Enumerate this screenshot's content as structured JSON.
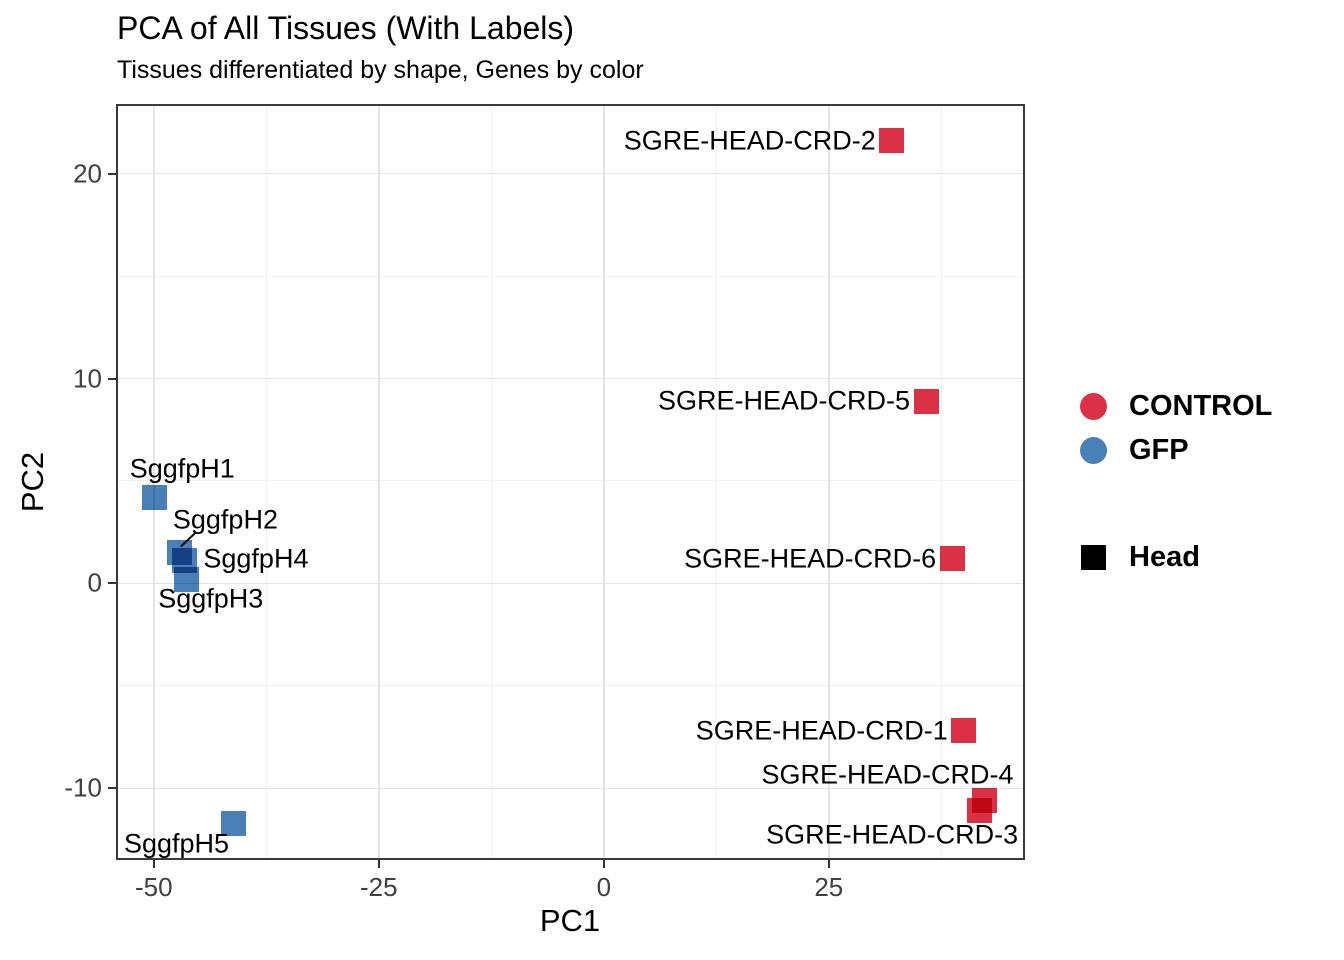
{
  "chart_data": {
    "type": "scatter",
    "title": "PCA of All Tissues (With Labels)",
    "subtitle": "Tissues differentiated by shape, Genes by color",
    "xlabel": "PC1",
    "ylabel": "PC2",
    "xlim": [
      -54.2,
      46.8
    ],
    "ylim": [
      -13.5,
      23.4
    ],
    "x_major_ticks": [
      -50,
      -25,
      0,
      25
    ],
    "y_major_ticks": [
      -10,
      0,
      10,
      20
    ],
    "x_minor_ticks": [
      -37.5,
      -12.5,
      12.5,
      37.5
    ],
    "y_minor_ticks": [
      -5,
      5,
      15
    ],
    "grid": true,
    "legend_position": "right",
    "marker_shape": "square",
    "series": [
      {
        "name": "CONTROL",
        "color": "#dc3044",
        "points": [
          {
            "label": "SGRE-HEAD-CRD-2",
            "x": 32.0,
            "y": 21.6,
            "label_dx": -16,
            "label_dy": 0,
            "label_align": "right"
          },
          {
            "label": "SGRE-HEAD-CRD-5",
            "x": 35.8,
            "y": 8.9,
            "label_dx": -16,
            "label_dy": 0,
            "label_align": "right"
          },
          {
            "label": "SGRE-HEAD-CRD-6",
            "x": 38.7,
            "y": 1.2,
            "label_dx": -16,
            "label_dy": 0,
            "label_align": "right"
          },
          {
            "label": "SGRE-HEAD-CRD-1",
            "x": 40.0,
            "y": -7.2,
            "label_dx": -16,
            "label_dy": 0,
            "label_align": "right"
          },
          {
            "label": "SGRE-HEAD-CRD-4",
            "x": 42.3,
            "y": -10.6,
            "label_dx": 29,
            "label_dy": -26,
            "label_align": "right"
          },
          {
            "label": "SGRE-HEAD-CRD-3",
            "x": 41.7,
            "y": -11.1,
            "label_dx": 39,
            "label_dy": 24,
            "label_align": "right"
          }
        ]
      },
      {
        "name": "GFP",
        "color": "#4a80b8",
        "points": [
          {
            "label": "SggfpH1",
            "x": -49.9,
            "y": 4.2,
            "label_dx": -25,
            "label_dy": -28,
            "label_align": "left"
          },
          {
            "label": "SggfpH2",
            "x": -47.1,
            "y": 1.5,
            "label_dx": -7,
            "label_dy": -33,
            "label_align": "left"
          },
          {
            "label": "SggfpH4",
            "x": -46.6,
            "y": 1.1,
            "label_dx": 19,
            "label_dy": -2,
            "label_align": "left"
          },
          {
            "label": "SggfpH3",
            "x": -46.4,
            "y": 0.2,
            "label_dx": -28,
            "label_dy": 20,
            "label_align": "left"
          },
          {
            "label": "SggfpH5",
            "x": -41.2,
            "y": -11.7,
            "label_dx": -109,
            "label_dy": 21,
            "label_align": "left"
          }
        ]
      }
    ],
    "shape_legend": {
      "label": "Head",
      "shape": "square",
      "color": "#000000"
    },
    "annotations": [
      {
        "type": "segment",
        "x1": -47.0,
        "y1": 1.8,
        "x2": -45.3,
        "y2": 2.5,
        "color": "#000000"
      }
    ]
  }
}
